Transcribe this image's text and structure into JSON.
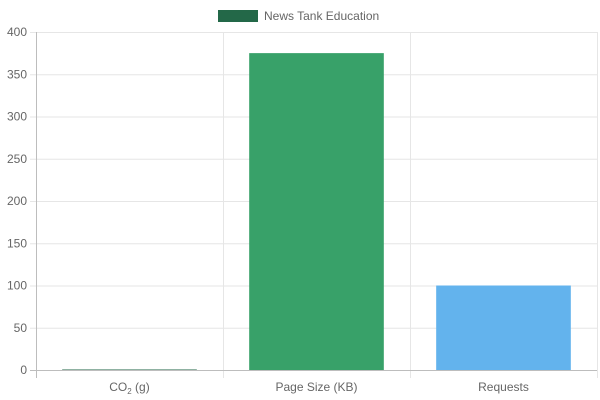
{
  "chart_data": {
    "type": "bar",
    "legend": {
      "position": "top-center",
      "entries": [
        {
          "label": "News Tank Education",
          "color": "#236848"
        }
      ]
    },
    "categories": [
      {
        "main": "CO",
        "sub": "2",
        "suffix": " (g)"
      },
      {
        "main": "Page Size (KB)",
        "sub": "",
        "suffix": ""
      },
      {
        "main": "Requests",
        "sub": "",
        "suffix": ""
      }
    ],
    "values": [
      0.6,
      375,
      100
    ],
    "bar_colors": [
      "#236848",
      "#38a169",
      "#63b3ed"
    ],
    "ylim": [
      0,
      400
    ],
    "yticks": [
      0,
      50,
      100,
      150,
      200,
      250,
      300,
      350,
      400
    ],
    "grid": true,
    "xlabel": "",
    "ylabel": ""
  }
}
